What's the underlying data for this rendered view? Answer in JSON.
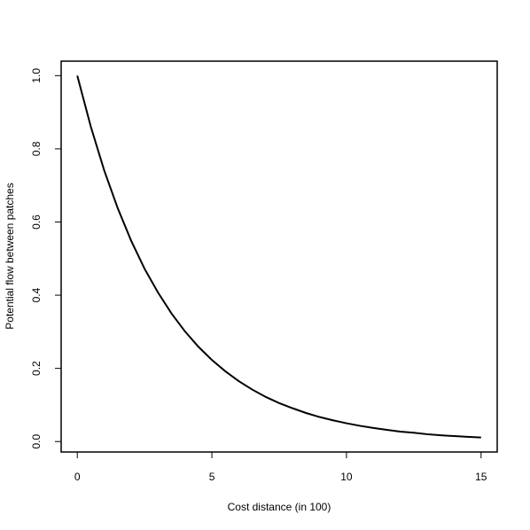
{
  "chart_data": {
    "type": "line",
    "x_label": "Cost distance (in 100)",
    "y_label": "Potential flow between patches",
    "x": [
      0,
      0.5,
      1,
      1.5,
      2,
      2.5,
      3,
      3.5,
      4,
      4.5,
      5,
      5.5,
      6,
      6.5,
      7,
      7.5,
      8,
      8.5,
      9,
      9.5,
      10,
      10.5,
      11,
      11.5,
      12,
      12.5,
      13,
      13.5,
      14,
      14.5,
      15
    ],
    "series": [
      {
        "color": "#000000",
        "values": [
          1,
          0.861,
          0.741,
          0.638,
          0.549,
          0.472,
          0.407,
          0.35,
          0.301,
          0.259,
          0.223,
          0.192,
          0.165,
          0.142,
          0.122,
          0.105,
          0.091,
          0.078,
          0.067,
          0.058,
          0.05,
          0.043,
          0.037,
          0.032,
          0.027,
          0.024,
          0.02,
          0.017,
          0.015,
          0.013,
          0.011
        ]
      }
    ],
    "xlim": [
      -0.6,
      15.6
    ],
    "ylim": [
      -0.0286,
      1.0396
    ],
    "xticks": [
      0,
      5,
      10,
      15
    ],
    "yticks": [
      {
        "value": 0,
        "label": "0.0"
      },
      {
        "value": 0.2,
        "label": "0.2"
      },
      {
        "value": 0.4,
        "label": "0.4"
      },
      {
        "value": 0.6,
        "label": "0.6"
      },
      {
        "value": 0.8,
        "label": "0.8"
      },
      {
        "value": 1,
        "label": "1.0"
      }
    ]
  }
}
